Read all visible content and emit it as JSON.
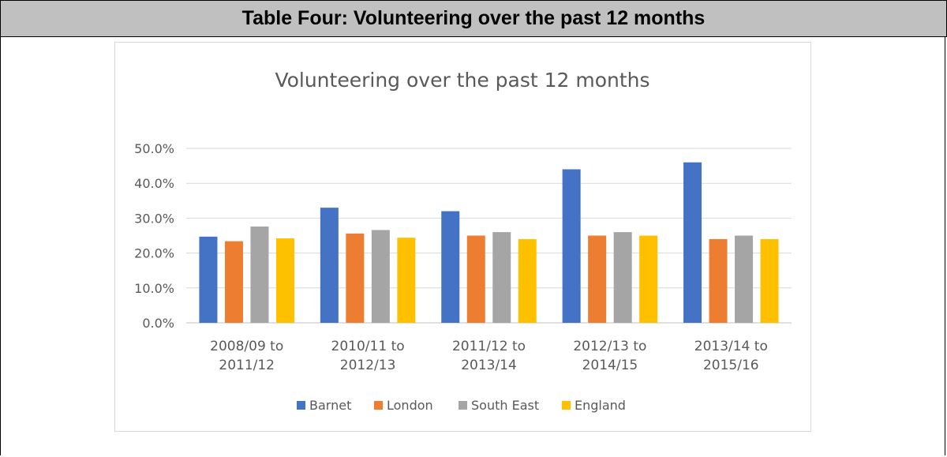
{
  "header": {
    "title": "Table Four: Volunteering over the past 12 months"
  },
  "chart_data": {
    "type": "bar",
    "title": "Volunteering over the past 12 months",
    "categories": [
      [
        "2008/09 to",
        "2011/12"
      ],
      [
        "2010/11 to",
        "2012/13"
      ],
      [
        "2011/12 to",
        "2013/14"
      ],
      [
        "2012/13 to",
        "2014/15"
      ],
      [
        "2013/14 to",
        "2015/16"
      ]
    ],
    "series": [
      {
        "name": "Barnet",
        "color": "#4472c4",
        "values": [
          24.7,
          33.0,
          32.0,
          44.0,
          46.0
        ]
      },
      {
        "name": "London",
        "color": "#ed7d31",
        "values": [
          23.4,
          25.6,
          25.0,
          25.0,
          24.0
        ]
      },
      {
        "name": "South East",
        "color": "#a5a5a5",
        "values": [
          27.6,
          26.6,
          26.0,
          26.0,
          25.0
        ]
      },
      {
        "name": "England",
        "color": "#ffc000",
        "values": [
          24.2,
          24.4,
          24.0,
          25.0,
          24.0
        ]
      }
    ],
    "yticks": [
      "0.0%",
      "10.0%",
      "20.0%",
      "30.0%",
      "40.0%",
      "50.0%"
    ],
    "ylim": [
      0,
      50
    ],
    "grid": true,
    "legend_position": "bottom",
    "xlabel": "",
    "ylabel": ""
  }
}
